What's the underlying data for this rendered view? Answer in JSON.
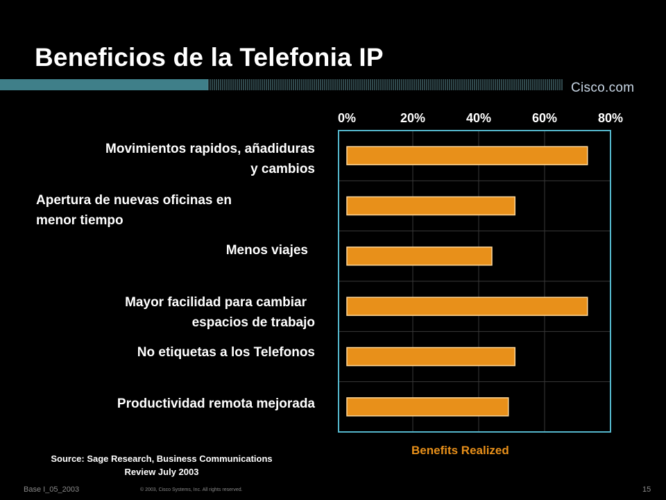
{
  "slide": {
    "title": "Beneficios de la Telefonia IP",
    "brand": "Cisco.com",
    "source_line1": "Source: Sage Research, Business Communications",
    "source_line2": "Review July 2003",
    "footer_left": "Base I_05_2003",
    "footer_copyright": "© 2003, Cisco Systems, Inc. All rights reserved.",
    "page_number": "15"
  },
  "colors": {
    "background": "#000000",
    "bar": "#e8901a",
    "plot_border": "#55b7cc",
    "benefits_label": "#e8901a"
  },
  "chart_data": {
    "type": "bar",
    "orientation": "horizontal",
    "categories": [
      "Movimientos rapidos, añadiduras y cambios",
      "Apertura de nuevas oficinas en menor tiempo",
      "Menos viajes",
      "Mayor facilidad para cambiar espacios de trabajo",
      "No etiquetas a los Telefonos",
      "Productividad remota mejorada"
    ],
    "label_lines": [
      [
        "Movimientos rapidos, añadiduras",
        "y cambios"
      ],
      [
        "Apertura de nuevas oficinas en",
        "menor tiempo"
      ],
      [
        "Menos viajes"
      ],
      [
        "Mayor facilidad para cambiar",
        "espacios de trabajo"
      ],
      [
        "No etiquetas a los Telefonos"
      ],
      [
        "Productividad remota mejorada"
      ]
    ],
    "values": [
      73,
      51,
      44,
      73,
      51,
      49
    ],
    "xlim": [
      0,
      80
    ],
    "ticks": [
      0,
      20,
      40,
      60,
      80
    ],
    "tick_labels": [
      "0%",
      "20%",
      "40%",
      "60%",
      "80%"
    ],
    "xlabel": "Benefits Realized",
    "legend": "none",
    "grid": true
  }
}
